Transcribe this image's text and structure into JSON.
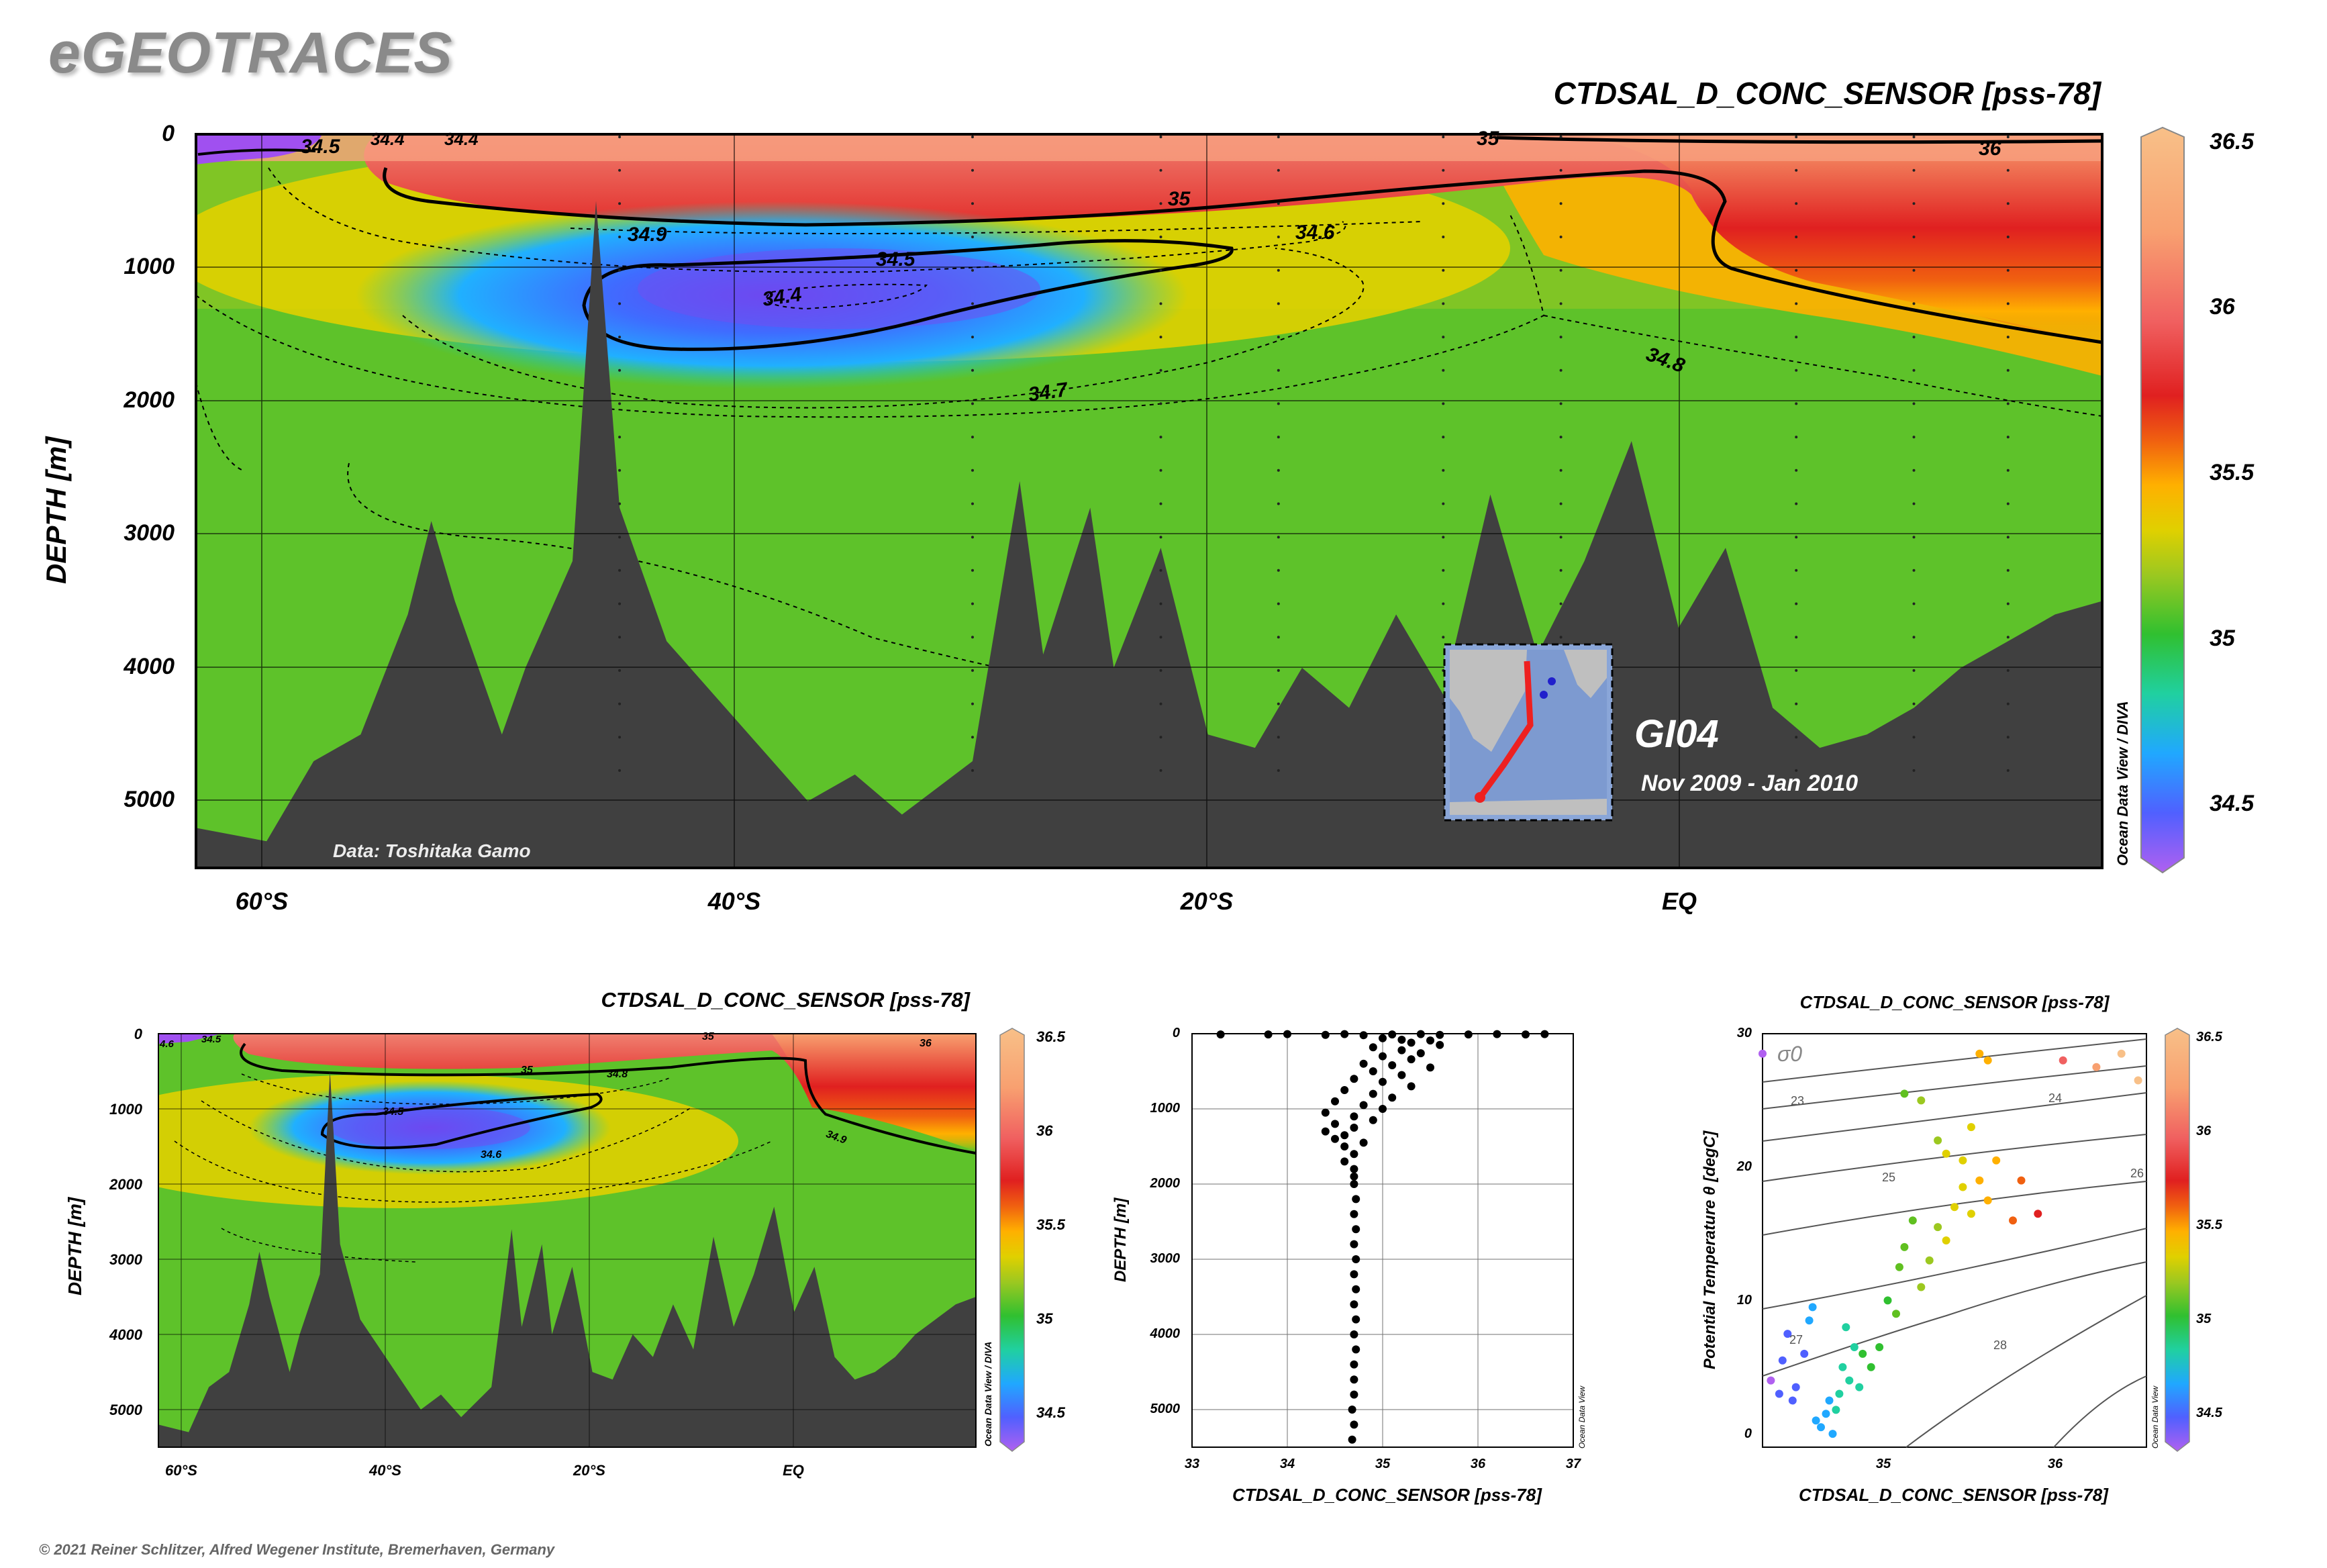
{
  "brand": "eGEOTRACES",
  "copyright": "© 2021 Reiner Schlitzer, Alfred Wegener Institute, Bremerhaven, Germany",
  "colors": {
    "land": "#404040",
    "contour": "#000000",
    "colormap": [
      "#b060f0",
      "#5060ff",
      "#20a8ff",
      "#20d0a0",
      "#30c030",
      "#60c020",
      "#9cc820",
      "#e0d000",
      "#ffb000",
      "#f06010",
      "#e02020",
      "#f06060",
      "#f8a070",
      "#f8c088"
    ]
  },
  "main": {
    "title": "CTDSAL_D_CONC_SENSOR [pss-78]",
    "ylabel": "DEPTH [m]",
    "yticks": [
      "0",
      "1000",
      "2000",
      "3000",
      "4000",
      "5000"
    ],
    "xticks": [
      "60°S",
      "40°S",
      "20°S",
      "EQ"
    ],
    "credit": "Data: Toshitaka Gamo",
    "cruise": "GI04",
    "period": "Nov 2009 - Jan 2010",
    "odv": "Ocean Data View / DIVA",
    "colorbar_ticks": [
      "36.5",
      "36",
      "35.5",
      "35",
      "34.5"
    ],
    "contour_labels": [
      "34.5",
      "34.4",
      "34.4",
      "35",
      "36",
      "35",
      "34.9",
      "34.6",
      "34.5",
      "34.4",
      "34.7",
      "34.8"
    ]
  },
  "small": {
    "title": "CTDSAL_D_CONC_SENSOR [pss-78]",
    "ylabel": "DEPTH [m]",
    "yticks": [
      "0",
      "1000",
      "2000",
      "3000",
      "4000",
      "5000"
    ],
    "xticks": [
      "60°S",
      "40°S",
      "20°S",
      "EQ"
    ],
    "odv": "Ocean Data View / DIVA",
    "colorbar_ticks": [
      "36.5",
      "36",
      "35.5",
      "35",
      "34.5"
    ],
    "contour_labels": [
      "4.6",
      "34.5",
      "35",
      "36",
      "35",
      "34.8",
      "34.5",
      "34.6",
      "34.9"
    ]
  },
  "profile": {
    "xlabel": "CTDSAL_D_CONC_SENSOR [pss-78]",
    "ylabel": "DEPTH [m]",
    "xticks": [
      "33",
      "34",
      "35",
      "36",
      "37"
    ],
    "yticks": [
      "0",
      "1000",
      "2000",
      "3000",
      "4000",
      "5000"
    ],
    "odv": "Ocean Data View"
  },
  "ts": {
    "title": "CTDSAL_D_CONC_SENSOR [pss-78]",
    "xlabel": "CTDSAL_D_CONC_SENSOR [pss-78]",
    "ylabel": "Potential Temperature θ [degC]",
    "xticks": [
      "35",
      "36"
    ],
    "yticks": [
      "0",
      "10",
      "20",
      "30"
    ],
    "sigma_label": "σ0",
    "isopycnal_labels": [
      "23",
      "24",
      "25",
      "26",
      "27",
      "28"
    ],
    "odv": "Ocean Data View",
    "colorbar_ticks": [
      "36.5",
      "36",
      "35.5",
      "35",
      "34.5"
    ]
  },
  "chart_data": [
    {
      "type": "heatmap",
      "title": "CTDSAL_D_CONC_SENSOR [pss-78]",
      "ylabel": "DEPTH [m]",
      "xlabel": "",
      "x_range_deg": [
        -63,
        18
      ],
      "y_range_m": [
        0,
        5500
      ],
      "y_inverted": true,
      "x_ticks": [
        "60°S",
        "40°S",
        "20°S",
        "EQ"
      ],
      "y_ticks": [
        0,
        1000,
        2000,
        3000,
        4000,
        5000
      ],
      "colorbar_range": [
        34.3,
        36.5
      ],
      "colorbar_ticks": [
        34.5,
        35,
        35.5,
        36,
        36.5
      ],
      "contour_levels": [
        34.4,
        34.5,
        34.6,
        34.7,
        34.8,
        34.9,
        35,
        36
      ],
      "annotations": [
        "Data: Toshitaka Gamo",
        "GI04",
        "Nov 2009 - Jan 2010"
      ],
      "bathymetry": [
        [
          -63,
          5200
        ],
        [
          -60,
          5300
        ],
        [
          -58,
          4700
        ],
        [
          -56,
          4500
        ],
        [
          -54,
          3600
        ],
        [
          -53,
          2900
        ],
        [
          -52,
          3500
        ],
        [
          -50,
          4500
        ],
        [
          -49,
          4000
        ],
        [
          -47,
          3200
        ],
        [
          -46,
          500
        ],
        [
          -45,
          2800
        ],
        [
          -43,
          3800
        ],
        [
          -41,
          4200
        ],
        [
          -39,
          4600
        ],
        [
          -37,
          5000
        ],
        [
          -35,
          4800
        ],
        [
          -33,
          5100
        ],
        [
          -30,
          4700
        ],
        [
          -28,
          2600
        ],
        [
          -27,
          3900
        ],
        [
          -25,
          2800
        ],
        [
          -24,
          4000
        ],
        [
          -22,
          3100
        ],
        [
          -20,
          4500
        ],
        [
          -18,
          4600
        ],
        [
          -16,
          4000
        ],
        [
          -14,
          4300
        ],
        [
          -12,
          3600
        ],
        [
          -10,
          4200
        ],
        [
          -8,
          2700
        ],
        [
          -6,
          3900
        ],
        [
          -4,
          3200
        ],
        [
          -2,
          2300
        ],
        [
          0,
          3700
        ],
        [
          2,
          3100
        ],
        [
          4,
          4300
        ],
        [
          6,
          4600
        ],
        [
          8,
          4500
        ],
        [
          10,
          4300
        ],
        [
          12,
          4000
        ],
        [
          14,
          3800
        ],
        [
          16,
          3600
        ],
        [
          18,
          3500
        ]
      ]
    },
    {
      "type": "heatmap",
      "title": "CTDSAL_D_CONC_SENSOR [pss-78]",
      "ylabel": "DEPTH [m]",
      "x_ticks": [
        "60°S",
        "40°S",
        "20°S",
        "EQ"
      ],
      "y_ticks": [
        0,
        1000,
        2000,
        3000,
        4000,
        5000
      ],
      "colorbar_ticks": [
        34.5,
        35,
        35.5,
        36,
        36.5
      ]
    },
    {
      "type": "scatter",
      "xlabel": "CTDSAL_D_CONC_SENSOR [pss-78]",
      "ylabel": "DEPTH [m]",
      "xlim": [
        33,
        37
      ],
      "ylim": [
        5500,
        0
      ],
      "grid": true,
      "points": [
        [
          33.3,
          10
        ],
        [
          33.8,
          10
        ],
        [
          34.0,
          5
        ],
        [
          34.4,
          15
        ],
        [
          34.6,
          5
        ],
        [
          34.8,
          20
        ],
        [
          35.1,
          10
        ],
        [
          35.4,
          5
        ],
        [
          35.6,
          15
        ],
        [
          35.9,
          10
        ],
        [
          36.2,
          5
        ],
        [
          36.5,
          10
        ],
        [
          36.7,
          5
        ],
        [
          35.0,
          60
        ],
        [
          35.2,
          80
        ],
        [
          35.5,
          90
        ],
        [
          35.3,
          120
        ],
        [
          35.6,
          150
        ],
        [
          34.9,
          180
        ],
        [
          35.2,
          220
        ],
        [
          35.4,
          260
        ],
        [
          35.0,
          300
        ],
        [
          35.3,
          340
        ],
        [
          34.8,
          400
        ],
        [
          35.1,
          420
        ],
        [
          35.5,
          450
        ],
        [
          34.9,
          500
        ],
        [
          35.2,
          550
        ],
        [
          34.7,
          600
        ],
        [
          35.0,
          640
        ],
        [
          35.3,
          700
        ],
        [
          34.6,
          750
        ],
        [
          34.9,
          800
        ],
        [
          35.1,
          850
        ],
        [
          34.5,
          900
        ],
        [
          34.8,
          950
        ],
        [
          35.0,
          1000
        ],
        [
          34.4,
          1050
        ],
        [
          34.7,
          1100
        ],
        [
          34.9,
          1150
        ],
        [
          34.5,
          1200
        ],
        [
          34.7,
          1250
        ],
        [
          34.4,
          1300
        ],
        [
          34.6,
          1350
        ],
        [
          34.5,
          1400
        ],
        [
          34.8,
          1450
        ],
        [
          34.6,
          1500
        ],
        [
          34.7,
          1600
        ],
        [
          34.6,
          1700
        ],
        [
          34.7,
          1800
        ],
        [
          34.7,
          1900
        ],
        [
          34.7,
          2000
        ],
        [
          34.72,
          2200
        ],
        [
          34.7,
          2400
        ],
        [
          34.72,
          2600
        ],
        [
          34.7,
          2800
        ],
        [
          34.72,
          3000
        ],
        [
          34.7,
          3200
        ],
        [
          34.72,
          3400
        ],
        [
          34.7,
          3600
        ],
        [
          34.72,
          3800
        ],
        [
          34.7,
          4000
        ],
        [
          34.72,
          4200
        ],
        [
          34.7,
          4400
        ],
        [
          34.7,
          4600
        ],
        [
          34.7,
          4800
        ],
        [
          34.68,
          5000
        ],
        [
          34.7,
          5200
        ],
        [
          34.68,
          5400
        ]
      ]
    },
    {
      "type": "scatter",
      "title": "CTDSAL_D_CONC_SENSOR [pss-78]",
      "xlabel": "CTDSAL_D_CONC_SENSOR [pss-78]",
      "ylabel": "Potential Temperature θ [degC]",
      "xlim": [
        34.3,
        36.6
      ],
      "ylim": [
        -1,
        30
      ],
      "color_by": "salinity",
      "isopycnals": [
        23,
        24,
        25,
        26,
        27,
        28
      ],
      "points": [
        [
          34.35,
          4.0
        ],
        [
          34.4,
          3.0
        ],
        [
          34.42,
          5.5
        ],
        [
          34.45,
          7.5
        ],
        [
          34.48,
          2.5
        ],
        [
          34.5,
          3.5
        ],
        [
          34.55,
          6.0
        ],
        [
          34.58,
          8.5
        ],
        [
          34.6,
          9.5
        ],
        [
          34.62,
          1.0
        ],
        [
          34.65,
          0.5
        ],
        [
          34.68,
          1.5
        ],
        [
          34.7,
          2.5
        ],
        [
          34.72,
          0.0
        ],
        [
          34.74,
          1.8
        ],
        [
          34.76,
          3.0
        ],
        [
          34.78,
          5.0
        ],
        [
          34.8,
          8.0
        ],
        [
          34.82,
          4.0
        ],
        [
          34.85,
          6.5
        ],
        [
          34.88,
          3.5
        ],
        [
          34.9,
          6.0
        ],
        [
          34.95,
          5.0
        ],
        [
          35.0,
          6.5
        ],
        [
          35.05,
          10.0
        ],
        [
          35.1,
          9.0
        ],
        [
          35.12,
          12.5
        ],
        [
          35.15,
          14.0
        ],
        [
          35.2,
          16.0
        ],
        [
          35.25,
          11.0
        ],
        [
          35.3,
          13.0
        ],
        [
          35.35,
          15.5
        ],
        [
          35.4,
          14.5
        ],
        [
          35.45,
          17.0
        ],
        [
          35.5,
          18.5
        ],
        [
          35.55,
          16.5
        ],
        [
          35.6,
          19.0
        ],
        [
          35.65,
          17.5
        ],
        [
          35.7,
          20.5
        ],
        [
          35.15,
          25.5
        ],
        [
          35.25,
          25.0
        ],
        [
          35.35,
          22.0
        ],
        [
          35.4,
          21.0
        ],
        [
          35.5,
          20.5
        ],
        [
          35.55,
          23.0
        ],
        [
          35.6,
          28.5
        ],
        [
          35.65,
          28.0
        ],
        [
          35.8,
          16.0
        ],
        [
          35.85,
          19.0
        ],
        [
          35.95,
          16.5
        ],
        [
          36.1,
          28.0
        ],
        [
          36.3,
          27.5
        ],
        [
          36.45,
          28.5
        ],
        [
          36.55,
          26.5
        ],
        [
          34.3,
          28.5
        ]
      ]
    }
  ]
}
